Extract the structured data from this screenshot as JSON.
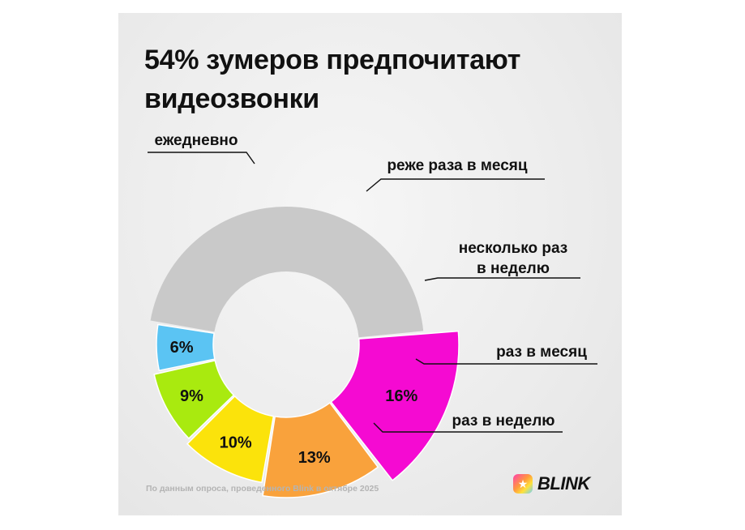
{
  "title_lines": [
    "54% зумеров предпочитают",
    "видеозвонки"
  ],
  "footnote": "По данным опроса, проведенного Blink в октябре 2025",
  "brand": {
    "name": "BLINK",
    "icon": "star-face-icon"
  },
  "chart_data": {
    "type": "donut",
    "unit": "%",
    "slices": [
      {
        "category": "ежедневно",
        "value": 16,
        "label": "16%",
        "color": "#f50ad2"
      },
      {
        "category": "реже раза в месяц",
        "value": 13,
        "label": "13%",
        "color": "#f9a23c"
      },
      {
        "category": "несколько раз в неделю",
        "value": 10,
        "label": "10%",
        "color": "#fbe30b"
      },
      {
        "category": "раз в месяц",
        "value": 9,
        "label": "9%",
        "color": "#a9ea0f"
      },
      {
        "category": "раз в неделю",
        "value": 6,
        "label": "6%",
        "color": "#5bc4f3"
      }
    ],
    "remainder_color": "#c9c9c9",
    "category_lines": [
      [
        "ежедневно"
      ],
      [
        "реже раза в месяц"
      ],
      [
        "несколько раз",
        "в неделю"
      ],
      [
        "раз в месяц"
      ],
      [
        "раз в неделю"
      ]
    ]
  }
}
